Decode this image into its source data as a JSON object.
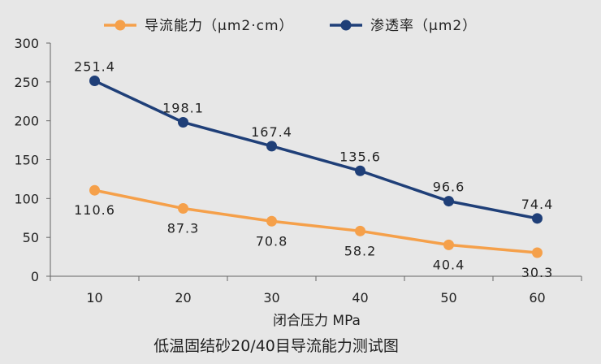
{
  "chart_data": {
    "type": "line",
    "title": "低温固结砂20/40目导流能力测试图",
    "xlabel": "闭合压力 MPa",
    "ylabel": "",
    "categories": [
      "10",
      "20",
      "30",
      "40",
      "50",
      "60"
    ],
    "ylim": [
      0,
      300
    ],
    "yticks": [
      "0",
      "50",
      "100",
      "150",
      "200",
      "250",
      "300"
    ],
    "grid": false,
    "legend_position": "top",
    "series": [
      {
        "name": "导流能力（μm2·cm）",
        "color": "#f5a04a",
        "values": [
          110.6,
          87.3,
          70.8,
          58.2,
          40.4,
          30.3
        ],
        "labels": [
          "110.6",
          "87.3",
          "70.8",
          "58.2",
          "40.4",
          "30.3"
        ],
        "label_position": "below"
      },
      {
        "name": "渗透率（μm2）",
        "color": "#1f3f78",
        "values": [
          251.4,
          198.1,
          167.4,
          135.6,
          96.6,
          74.4
        ],
        "labels": [
          "251.4",
          "198.1",
          "167.4",
          "135.6",
          "96.6",
          "74.4"
        ],
        "label_position": "above"
      }
    ]
  }
}
